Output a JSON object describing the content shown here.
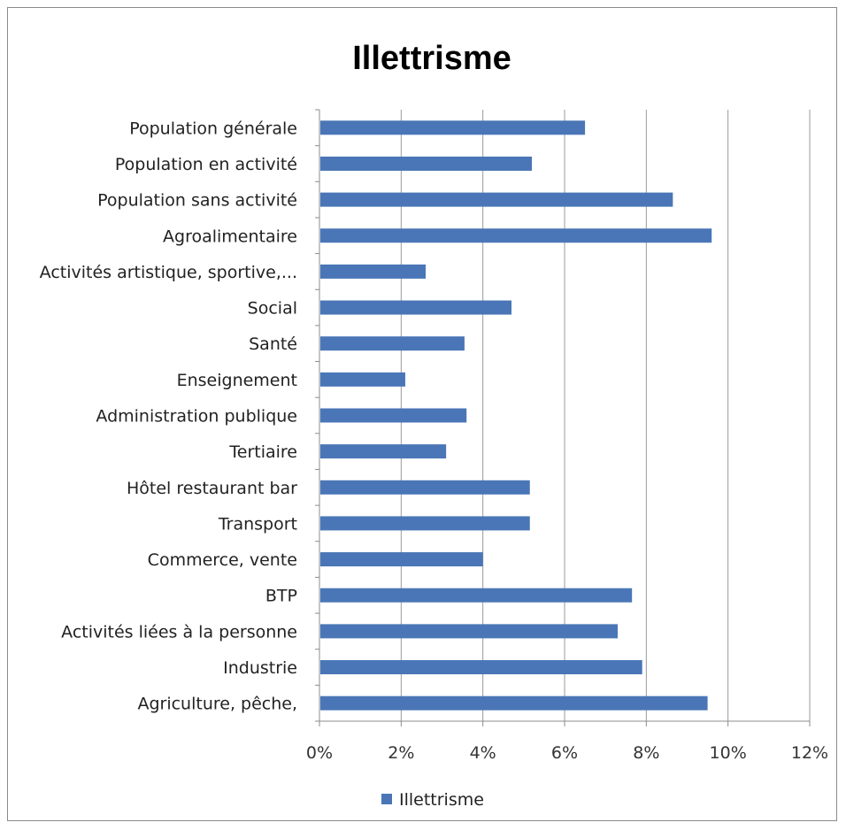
{
  "chart_data": {
    "type": "bar",
    "orientation": "horizontal",
    "title": "Illettrisme",
    "categories": [
      "Population générale",
      "Population en activité",
      "Population sans activité",
      "Agroalimentaire",
      "Activités artistique, sportive,...",
      "Social",
      "Santé",
      "Enseignement",
      "Administration publique",
      "Tertiaire",
      "Hôtel restaurant bar",
      "Transport",
      "Commerce, vente",
      "BTP",
      "Activités liées à la personne",
      "Industrie",
      "Agriculture, pêche,"
    ],
    "series": [
      {
        "name": "Illettrisme",
        "color": "#4a76b7",
        "values": [
          6.5,
          5.2,
          8.65,
          9.6,
          2.6,
          4.7,
          3.55,
          2.1,
          3.6,
          3.1,
          5.15,
          5.15,
          4.0,
          7.65,
          7.3,
          7.9,
          9.5
        ]
      }
    ],
    "xlim": [
      0,
      12
    ],
    "xticks": [
      0,
      2,
      4,
      6,
      8,
      10,
      12
    ],
    "xtick_labels": [
      "0%",
      "2%",
      "4%",
      "6%",
      "8%",
      "10%",
      "12%"
    ],
    "grid": "vertical",
    "legend_position": "bottom"
  }
}
